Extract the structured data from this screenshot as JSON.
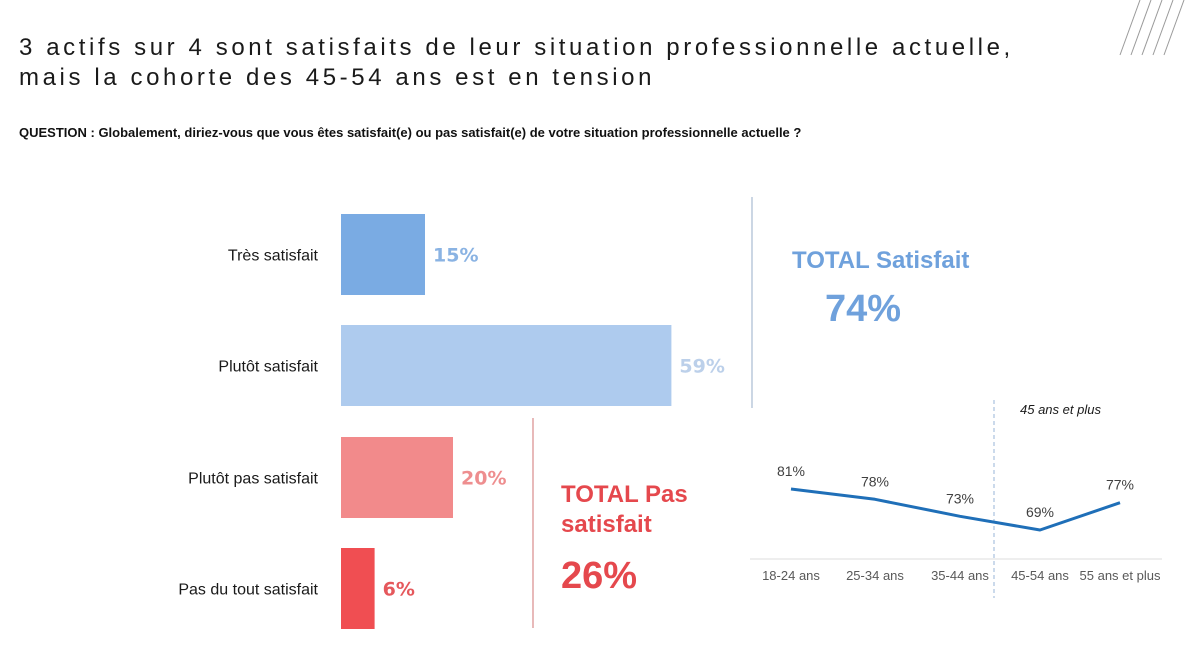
{
  "header": {
    "title_line1": "3 actifs sur 4 sont satisfaits de leur situation professionnelle actuelle,",
    "title_line2": "mais la cohorte des 45-54 ans est en tension",
    "question": "QUESTION : Globalement, diriez-vous que vous êtes satisfait(e) ou pas satisfait(e) de votre situation professionnelle actuelle ?"
  },
  "totals": {
    "satisfied": {
      "label": "TOTAL Satisfait",
      "value": "74%",
      "color": "#6FA1DC"
    },
    "unsatisfied": {
      "label_line1": "TOTAL Pas",
      "label_line2": "satisfait",
      "value": "26%",
      "color": "#E5484D"
    }
  },
  "annotation": "45 ans et plus",
  "chart_data": [
    {
      "type": "bar",
      "orientation": "horizontal",
      "title": "",
      "categories": [
        "Très satisfait",
        "Plutôt satisfait",
        "Plutôt pas satisfait",
        "Pas du tout satisfait"
      ],
      "values": [
        15,
        59,
        20,
        6
      ],
      "value_labels": [
        "15%",
        "59%",
        "20%",
        "6%"
      ],
      "unit": "%",
      "bar_colors": [
        "#7AABE3",
        "#AECBEE",
        "#F28A8B",
        "#F04E52"
      ],
      "label_colors": [
        "#8AB3E3",
        "#BCD0EA",
        "#EE8E8F",
        "#E5585C"
      ],
      "xlim": [
        0,
        100
      ],
      "grid": false
    },
    {
      "type": "line",
      "title": "",
      "x": [
        "18-24 ans",
        "25-34 ans",
        "35-44 ans",
        "45-54 ans",
        "55 ans et plus"
      ],
      "series": [
        {
          "name": "TOTAL Satisfait",
          "values": [
            81,
            78,
            73,
            69,
            77
          ],
          "value_labels": [
            "81%",
            "78%",
            "73%",
            "69%",
            "77%"
          ],
          "color": "#1F6FB8"
        }
      ],
      "ylim": [
        60,
        90
      ],
      "grid": false,
      "annotations": [
        {
          "text": "45 ans et plus",
          "divider_between": [
            "35-44 ans",
            "45-54 ans"
          ]
        }
      ]
    }
  ]
}
